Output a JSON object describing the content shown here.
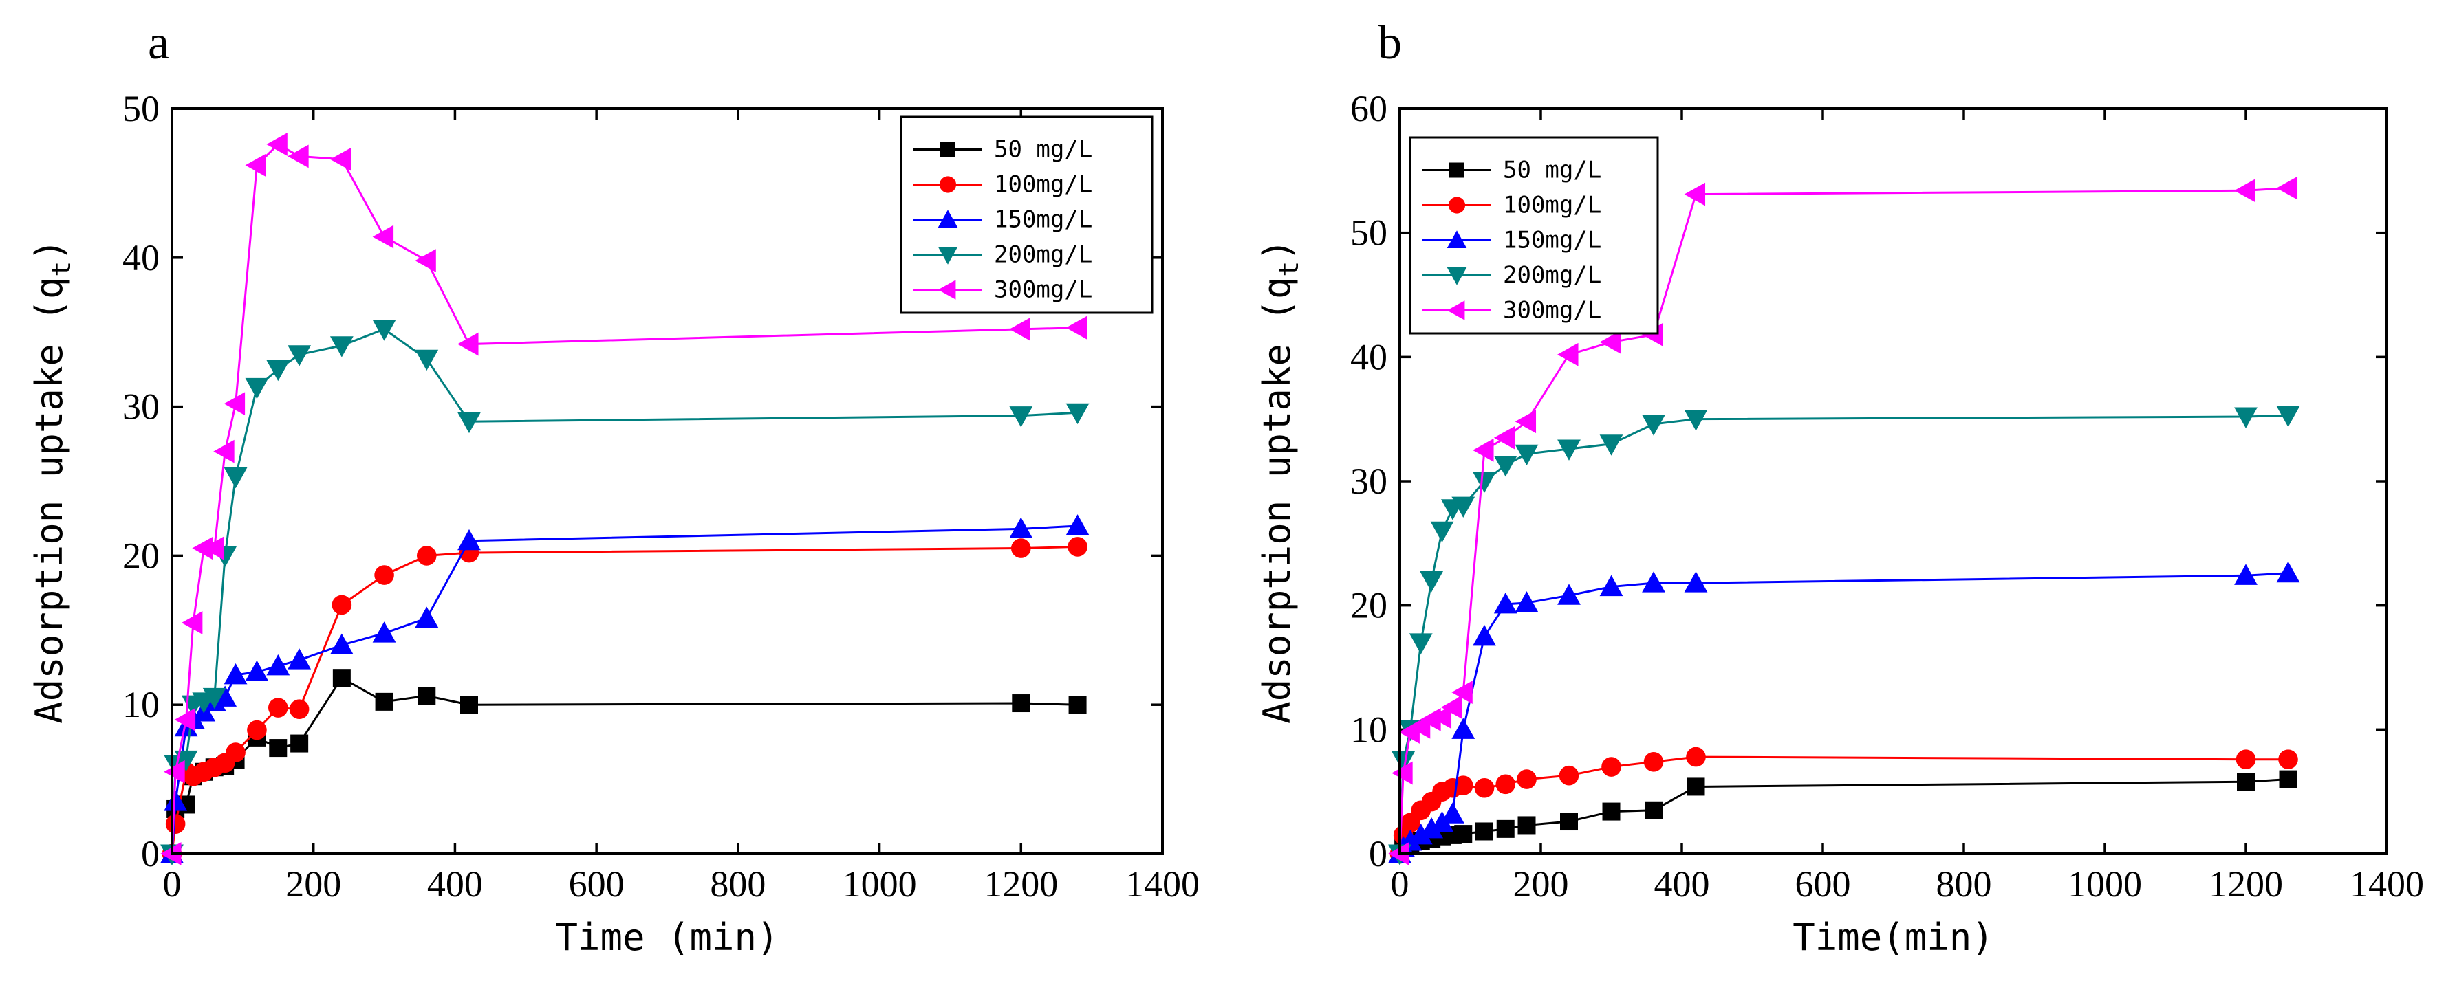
{
  "chart_data": [
    {
      "type": "line",
      "panel_label": "a",
      "xlabel": "Time (min)",
      "ylabel": "Adsorption uptake (q",
      "ylabel_sub": "t",
      "ylabel_close": ")",
      "xlim": [
        0,
        1400
      ],
      "ylim": [
        0,
        50
      ],
      "xticks": [
        0,
        200,
        400,
        600,
        800,
        1000,
        1200,
        1400
      ],
      "yticks": [
        0,
        10,
        20,
        30,
        40,
        50
      ],
      "legend_position": "top-right",
      "series": [
        {
          "name": "50 mg/L",
          "color": "#000000",
          "marker": "square",
          "x": [
            0,
            5,
            20,
            30,
            45,
            60,
            75,
            90,
            120,
            150,
            180,
            240,
            300,
            360,
            420,
            1200,
            1280
          ],
          "y": [
            0,
            3.0,
            3.3,
            5.2,
            5.5,
            5.8,
            5.9,
            6.3,
            7.8,
            7.1,
            7.4,
            11.8,
            10.2,
            10.6,
            10.0,
            10.1,
            10.0
          ]
        },
        {
          "name": "100mg/L",
          "color": "#ff0000",
          "marker": "circle",
          "x": [
            0,
            5,
            20,
            30,
            45,
            60,
            75,
            90,
            120,
            150,
            180,
            240,
            300,
            360,
            420,
            1200,
            1280
          ],
          "y": [
            0,
            2.0,
            5.5,
            5.2,
            5.5,
            5.8,
            6.1,
            6.8,
            8.3,
            9.8,
            9.7,
            16.7,
            18.7,
            20.0,
            20.2,
            20.5,
            20.6
          ]
        },
        {
          "name": "150mg/L",
          "color": "#0000ff",
          "marker": "triangle-up",
          "x": [
            0,
            5,
            20,
            30,
            45,
            60,
            75,
            90,
            120,
            150,
            180,
            240,
            300,
            360,
            420,
            1200,
            1280
          ],
          "y": [
            0,
            3.5,
            8.5,
            9.0,
            9.5,
            10.2,
            10.5,
            12.0,
            12.2,
            12.6,
            13.0,
            14.0,
            14.8,
            15.8,
            21.0,
            21.8,
            22.0
          ]
        },
        {
          "name": "200mg/L",
          "color": "#008080",
          "marker": "triangle-down",
          "x": [
            0,
            5,
            20,
            30,
            45,
            60,
            75,
            90,
            120,
            150,
            180,
            240,
            300,
            360,
            420,
            1200,
            1280
          ],
          "y": [
            0,
            6.0,
            6.3,
            10.0,
            10.2,
            10.5,
            20.0,
            25.3,
            31.3,
            32.5,
            33.5,
            34.1,
            35.2,
            33.2,
            29.0,
            29.4,
            29.6
          ]
        },
        {
          "name": "300mg/L",
          "color": "#ff00ff",
          "marker": "triangle-left",
          "x": [
            0,
            5,
            20,
            30,
            45,
            60,
            75,
            90,
            120,
            150,
            180,
            240,
            300,
            360,
            420,
            1200,
            1280
          ],
          "y": [
            0,
            5.5,
            9.0,
            15.5,
            20.5,
            20.5,
            27.0,
            30.2,
            46.2,
            47.6,
            46.8,
            46.6,
            41.4,
            39.8,
            34.2,
            35.2,
            35.3
          ]
        }
      ]
    },
    {
      "type": "line",
      "panel_label": "b",
      "xlabel": "Time(min)",
      "ylabel": "Adsorption uptake (q",
      "ylabel_sub": "t",
      "ylabel_close": ")",
      "xlim": [
        0,
        1400
      ],
      "ylim": [
        0,
        60
      ],
      "xticks": [
        0,
        200,
        400,
        600,
        800,
        1000,
        1200,
        1400
      ],
      "yticks": [
        0,
        10,
        20,
        30,
        40,
        50,
        60
      ],
      "legend_position": "top-left",
      "series": [
        {
          "name": "50 mg/L",
          "color": "#000000",
          "marker": "square",
          "x": [
            0,
            5,
            15,
            30,
            45,
            60,
            75,
            90,
            120,
            150,
            180,
            240,
            300,
            360,
            420,
            1200,
            1260
          ],
          "y": [
            0,
            0.5,
            0.8,
            1.0,
            1.2,
            1.4,
            1.5,
            1.6,
            1.8,
            2.0,
            2.3,
            2.6,
            3.4,
            3.5,
            5.4,
            5.8,
            6.0
          ]
        },
        {
          "name": "100mg/L",
          "color": "#ff0000",
          "marker": "circle",
          "x": [
            0,
            5,
            15,
            30,
            45,
            60,
            75,
            90,
            120,
            150,
            180,
            240,
            300,
            360,
            420,
            1200,
            1260
          ],
          "y": [
            0,
            1.5,
            2.5,
            3.5,
            4.2,
            5.0,
            5.3,
            5.5,
            5.3,
            5.6,
            6.0,
            6.3,
            7.0,
            7.4,
            7.8,
            7.6,
            7.6
          ]
        },
        {
          "name": "150mg/L",
          "color": "#0000ff",
          "marker": "triangle-up",
          "x": [
            0,
            5,
            15,
            30,
            45,
            60,
            75,
            90,
            120,
            150,
            180,
            240,
            300,
            360,
            420,
            1200,
            1260
          ],
          "y": [
            0,
            0.5,
            1.0,
            1.5,
            2.0,
            2.5,
            3.2,
            10.0,
            17.5,
            20.1,
            20.2,
            20.8,
            21.5,
            21.8,
            21.8,
            22.4,
            22.6
          ]
        },
        {
          "name": "200mg/L",
          "color": "#008080",
          "marker": "triangle-down",
          "x": [
            0,
            5,
            15,
            30,
            45,
            60,
            75,
            90,
            120,
            150,
            180,
            240,
            300,
            360,
            420,
            1200,
            1260
          ],
          "y": [
            0,
            7.5,
            10.0,
            17.0,
            22.0,
            26.0,
            27.8,
            28.0,
            30.0,
            31.3,
            32.2,
            32.6,
            33.0,
            34.6,
            35.0,
            35.2,
            35.3
          ]
        },
        {
          "name": "300mg/L",
          "color": "#ff00ff",
          "marker": "triangle-left",
          "x": [
            0,
            5,
            15,
            30,
            45,
            60,
            75,
            90,
            120,
            150,
            180,
            240,
            300,
            360,
            420,
            1200,
            1260
          ],
          "y": [
            0,
            6.5,
            9.8,
            10.2,
            10.8,
            11.0,
            11.8,
            13.0,
            32.5,
            33.5,
            34.8,
            40.2,
            41.2,
            41.8,
            53.1,
            53.4,
            53.6
          ]
        }
      ]
    }
  ]
}
